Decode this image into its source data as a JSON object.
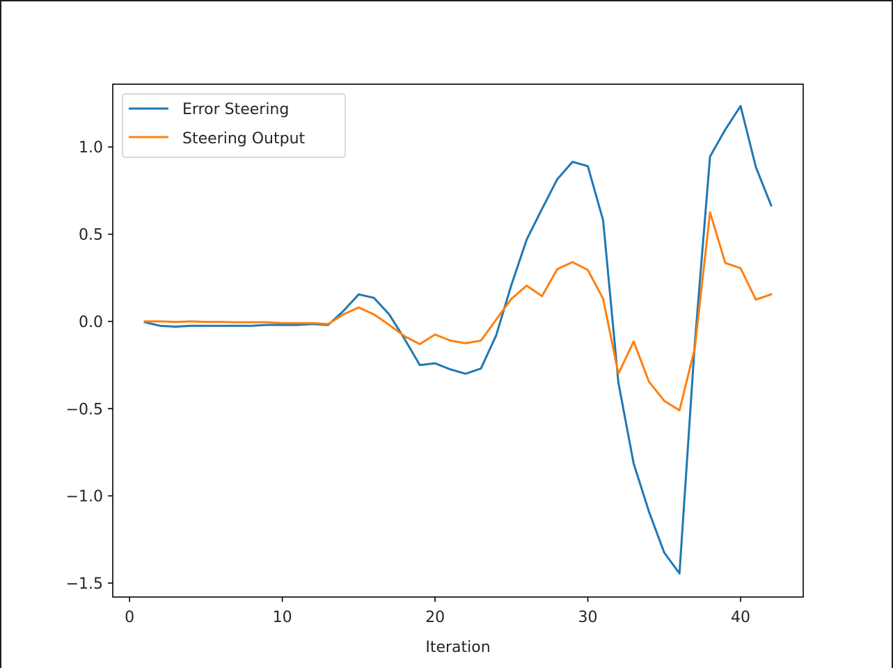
{
  "chart_data": {
    "type": "line",
    "title": "",
    "xlabel": "Iteration",
    "ylabel": "",
    "xlim": [
      -1.1,
      44.1
    ],
    "ylim": [
      -1.58,
      1.36
    ],
    "xticks": [
      0,
      10,
      20,
      30,
      40
    ],
    "xtick_labels": [
      "0",
      "10",
      "20",
      "30",
      "40"
    ],
    "yticks": [
      -1.5,
      -1.0,
      -0.5,
      0.0,
      0.5,
      1.0
    ],
    "ytick_labels": [
      "−1.5",
      "−1.0",
      "−0.5",
      "0.0",
      "0.5",
      "1.0"
    ],
    "grid": false,
    "legend": {
      "placement": "upper left"
    },
    "x": [
      1,
      2,
      3,
      4,
      5,
      6,
      7,
      8,
      9,
      10,
      11,
      12,
      13,
      14,
      15,
      16,
      17,
      18,
      19,
      20,
      21,
      22,
      23,
      24,
      25,
      26,
      27,
      28,
      29,
      30,
      31,
      32,
      33,
      34,
      35,
      36,
      37,
      38,
      39,
      40,
      41,
      42
    ],
    "series": [
      {
        "name": "Error Steering",
        "color": "#1f77b4",
        "values": [
          -0.005,
          -0.025,
          -0.03,
          -0.025,
          -0.025,
          -0.025,
          -0.025,
          -0.025,
          -0.02,
          -0.02,
          -0.02,
          -0.015,
          -0.02,
          0.06,
          0.155,
          0.135,
          0.04,
          -0.1,
          -0.25,
          -0.24,
          -0.275,
          -0.3,
          -0.27,
          -0.08,
          0.21,
          0.47,
          0.645,
          0.815,
          0.915,
          0.89,
          0.58,
          -0.35,
          -0.815,
          -1.09,
          -1.325,
          -1.445,
          -0.13,
          0.945,
          1.1,
          1.235,
          0.885,
          0.665
        ]
      },
      {
        "name": "Steering Output",
        "color": "#ff7f0e",
        "values": [
          0.0,
          0.0,
          -0.003,
          0.0,
          -0.003,
          -0.003,
          -0.005,
          -0.005,
          -0.005,
          -0.01,
          -0.01,
          -0.01,
          -0.015,
          0.04,
          0.08,
          0.04,
          -0.02,
          -0.085,
          -0.13,
          -0.075,
          -0.11,
          -0.125,
          -0.11,
          0.01,
          0.13,
          0.205,
          0.145,
          0.3,
          0.34,
          0.295,
          0.13,
          -0.3,
          -0.115,
          -0.345,
          -0.455,
          -0.51,
          -0.155,
          0.625,
          0.335,
          0.305,
          0.125,
          0.155
        ]
      }
    ]
  }
}
